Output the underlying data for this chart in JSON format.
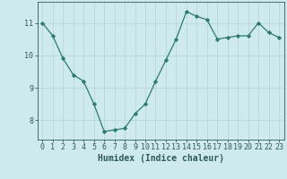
{
  "xlabel": "Humidex (Indice chaleur)",
  "x": [
    0,
    1,
    2,
    3,
    4,
    5,
    6,
    7,
    8,
    9,
    10,
    11,
    12,
    13,
    14,
    15,
    16,
    17,
    18,
    19,
    20,
    21,
    22,
    23
  ],
  "y": [
    11.0,
    10.6,
    9.9,
    9.4,
    9.2,
    8.5,
    7.65,
    7.7,
    7.75,
    8.2,
    8.5,
    9.2,
    9.85,
    10.5,
    11.35,
    11.2,
    11.1,
    10.5,
    10.55,
    10.6,
    10.6,
    11.0,
    10.7,
    10.55
  ],
  "line_color": "#2d7a6e",
  "marker": "D",
  "marker_size": 2.2,
  "bg_color": "#ceeaea",
  "grid_color": "#b8d8d8",
  "ylim": [
    7.4,
    11.65
  ],
  "yticks": [
    8,
    9,
    10,
    11
  ],
  "xticks": [
    0,
    1,
    2,
    3,
    4,
    5,
    6,
    7,
    8,
    9,
    10,
    11,
    12,
    13,
    14,
    15,
    16,
    17,
    18,
    19,
    20,
    21,
    22,
    23
  ],
  "tick_color": "#2d5a5a",
  "label_fontsize": 7,
  "tick_fontsize": 6,
  "line_width": 0.9
}
